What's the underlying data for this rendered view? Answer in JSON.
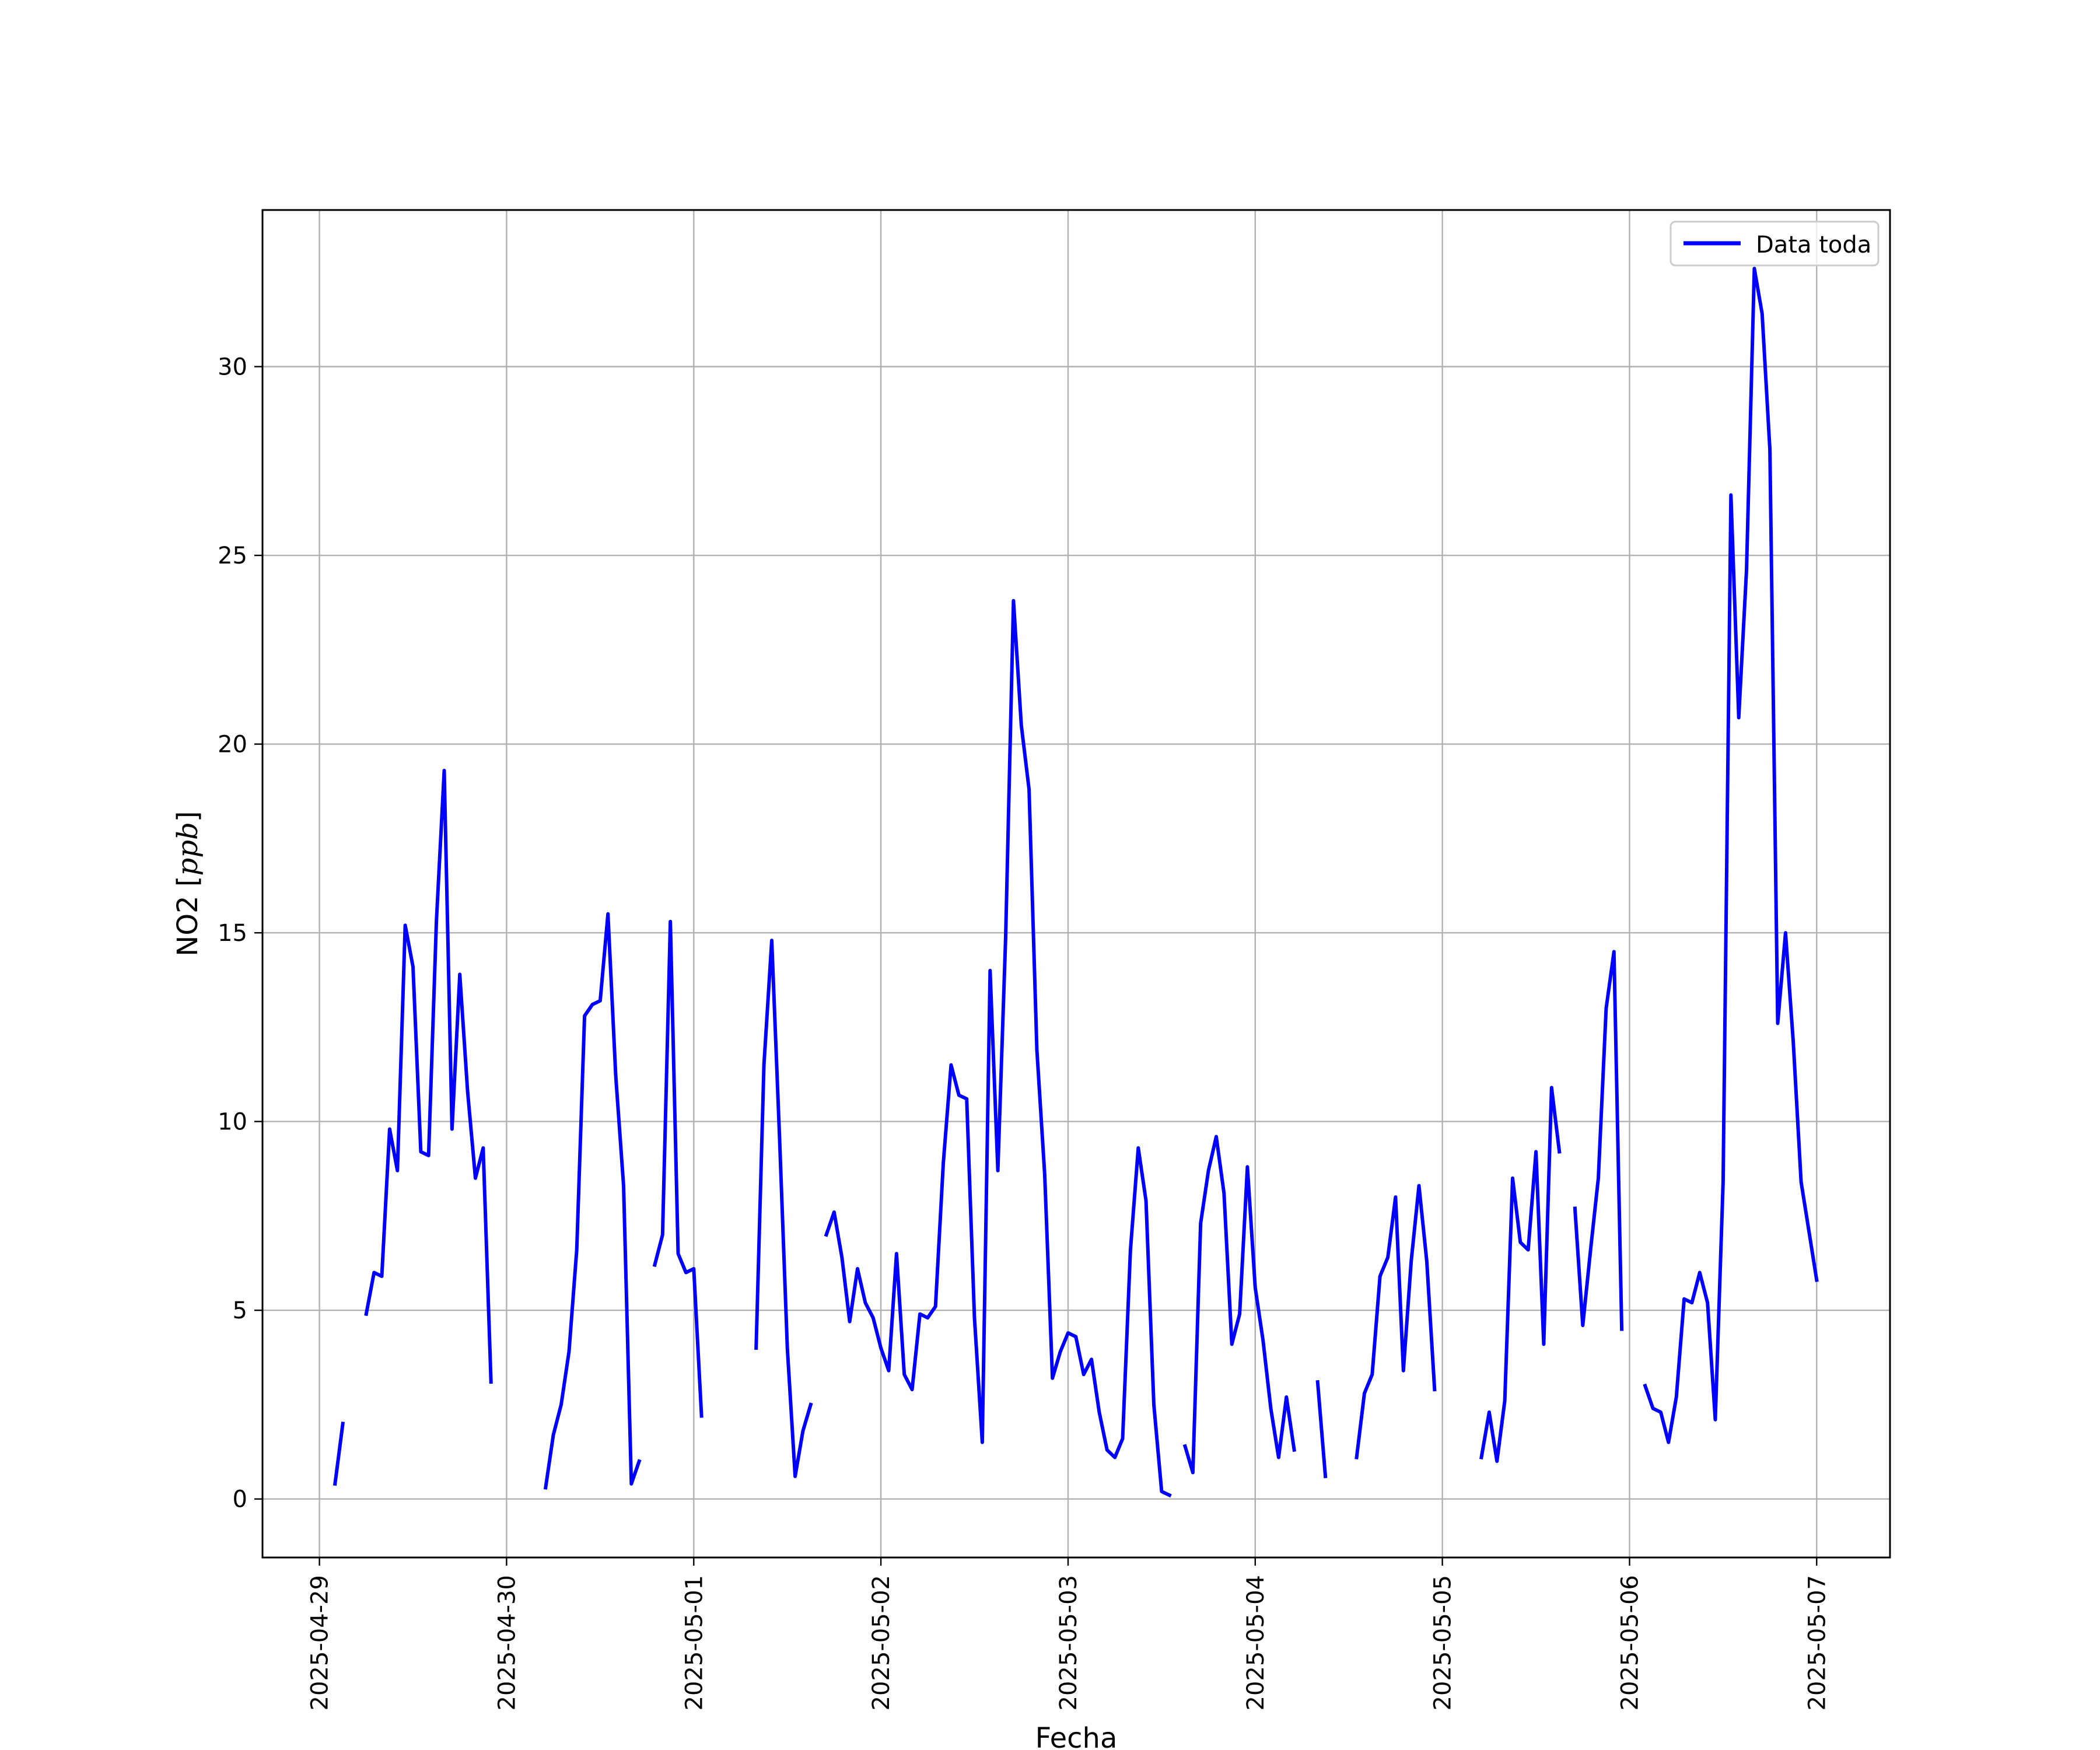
{
  "chart_data": {
    "type": "line",
    "title": "",
    "xlabel": "Fecha",
    "ylabel": "NO2 [ppb]",
    "ylabel_main": "NO2 [",
    "ylabel_unit": "ppb",
    "ylabel_close": "]",
    "xlim": [
      "2025-04-28T16:42",
      "2025-05-07T09:24"
    ],
    "ylim": [
      -1.55,
      34.15
    ],
    "x_ticks": [
      "2025-04-29",
      "2025-04-30",
      "2025-05-01",
      "2025-05-02",
      "2025-05-03",
      "2025-05-04",
      "2025-05-05",
      "2025-05-06",
      "2025-05-07"
    ],
    "y_ticks": [
      0,
      5,
      10,
      15,
      20,
      25,
      30
    ],
    "y_tick_labels": [
      "0",
      "5",
      "10",
      "15",
      "20",
      "25",
      "30"
    ],
    "grid": true,
    "legend": {
      "placement": "top-right",
      "entries": [
        "Data toda"
      ]
    },
    "series": [
      {
        "name": "Data toda",
        "color": "#0000ff",
        "segments": [
          [
            [
              "2025-04-29T02:00",
              0.4
            ],
            [
              "2025-04-29T03:00",
              2.0
            ]
          ],
          [
            [
              "2025-04-29T06:00",
              4.9
            ],
            [
              "2025-04-29T07:00",
              6.0
            ],
            [
              "2025-04-29T08:00",
              5.9
            ],
            [
              "2025-04-29T09:00",
              9.8
            ],
            [
              "2025-04-29T10:00",
              8.7
            ],
            [
              "2025-04-29T11:00",
              15.2
            ],
            [
              "2025-04-29T12:00",
              14.1
            ],
            [
              "2025-04-29T13:00",
              9.2
            ],
            [
              "2025-04-29T14:00",
              9.1
            ],
            [
              "2025-04-29T15:00",
              15.3
            ],
            [
              "2025-04-29T16:00",
              19.3
            ],
            [
              "2025-04-29T17:00",
              9.8
            ],
            [
              "2025-04-29T18:00",
              13.9
            ],
            [
              "2025-04-29T19:00",
              10.8
            ],
            [
              "2025-04-29T20:00",
              8.5
            ],
            [
              "2025-04-29T21:00",
              9.3
            ],
            [
              "2025-04-29T22:00",
              3.1
            ]
          ],
          [
            [
              "2025-04-30T05:00",
              0.3
            ],
            [
              "2025-04-30T06:00",
              1.7
            ],
            [
              "2025-04-30T07:00",
              2.5
            ],
            [
              "2025-04-30T08:00",
              3.9
            ],
            [
              "2025-04-30T09:00",
              6.6
            ],
            [
              "2025-04-30T10:00",
              12.8
            ],
            [
              "2025-04-30T11:00",
              13.1
            ],
            [
              "2025-04-30T12:00",
              13.2
            ],
            [
              "2025-04-30T13:00",
              15.5
            ],
            [
              "2025-04-30T14:00",
              11.2
            ],
            [
              "2025-04-30T15:00",
              8.3
            ],
            [
              "2025-04-30T16:00",
              0.4
            ],
            [
              "2025-04-30T17:00",
              1.0
            ]
          ],
          [
            [
              "2025-04-30T19:00",
              6.2
            ],
            [
              "2025-04-30T20:00",
              7.0
            ],
            [
              "2025-04-30T21:00",
              15.3
            ],
            [
              "2025-04-30T22:00",
              6.5
            ],
            [
              "2025-04-30T23:00",
              6.0
            ],
            [
              "2025-05-01T00:00",
              6.1
            ],
            [
              "2025-05-01T01:00",
              2.2
            ]
          ],
          [
            [
              "2025-05-01T08:00",
              4.0
            ],
            [
              "2025-05-01T09:00",
              11.5
            ],
            [
              "2025-05-01T10:00",
              14.8
            ],
            [
              "2025-05-01T11:00",
              9.6
            ],
            [
              "2025-05-01T12:00",
              4.0
            ],
            [
              "2025-05-01T13:00",
              0.6
            ],
            [
              "2025-05-01T14:00",
              1.8
            ],
            [
              "2025-05-01T15:00",
              2.5
            ]
          ],
          [
            [
              "2025-05-01T17:00",
              7.0
            ],
            [
              "2025-05-01T18:00",
              7.6
            ],
            [
              "2025-05-01T19:00",
              6.4
            ],
            [
              "2025-05-01T20:00",
              4.7
            ],
            [
              "2025-05-01T21:00",
              6.1
            ],
            [
              "2025-05-01T22:00",
              5.2
            ],
            [
              "2025-05-01T23:00",
              4.8
            ],
            [
              "2025-05-02T00:00",
              4.0
            ],
            [
              "2025-05-02T01:00",
              3.4
            ],
            [
              "2025-05-02T02:00",
              6.5
            ],
            [
              "2025-05-02T03:00",
              3.3
            ],
            [
              "2025-05-02T04:00",
              2.9
            ],
            [
              "2025-05-02T05:00",
              4.9
            ],
            [
              "2025-05-02T06:00",
              4.8
            ],
            [
              "2025-05-02T07:00",
              5.1
            ],
            [
              "2025-05-02T08:00",
              8.9
            ],
            [
              "2025-05-02T09:00",
              11.5
            ],
            [
              "2025-05-02T10:00",
              10.7
            ],
            [
              "2025-05-02T11:00",
              10.6
            ],
            [
              "2025-05-02T12:00",
              4.8
            ],
            [
              "2025-05-02T13:00",
              1.5
            ],
            [
              "2025-05-02T14:00",
              14.0
            ],
            [
              "2025-05-02T15:00",
              8.7
            ],
            [
              "2025-05-02T16:00",
              14.9
            ],
            [
              "2025-05-02T17:00",
              23.8
            ],
            [
              "2025-05-02T18:00",
              20.5
            ],
            [
              "2025-05-02T19:00",
              18.8
            ],
            [
              "2025-05-02T20:00",
              11.9
            ],
            [
              "2025-05-02T21:00",
              8.6
            ],
            [
              "2025-05-02T22:00",
              3.2
            ],
            [
              "2025-05-02T23:00",
              3.9
            ],
            [
              "2025-05-03T00:00",
              4.4
            ],
            [
              "2025-05-03T01:00",
              4.3
            ],
            [
              "2025-05-03T02:00",
              3.3
            ],
            [
              "2025-05-03T03:00",
              3.7
            ],
            [
              "2025-05-03T04:00",
              2.3
            ],
            [
              "2025-05-03T05:00",
              1.3
            ],
            [
              "2025-05-03T06:00",
              1.1
            ],
            [
              "2025-05-03T07:00",
              1.6
            ],
            [
              "2025-05-03T08:00",
              6.6
            ],
            [
              "2025-05-03T09:00",
              9.3
            ],
            [
              "2025-05-03T10:00",
              7.9
            ],
            [
              "2025-05-03T11:00",
              2.5
            ],
            [
              "2025-05-03T12:00",
              0.2
            ],
            [
              "2025-05-03T13:00",
              0.1
            ]
          ],
          [
            [
              "2025-05-03T15:00",
              1.4
            ],
            [
              "2025-05-03T16:00",
              0.7
            ],
            [
              "2025-05-03T17:00",
              7.3
            ],
            [
              "2025-05-03T18:00",
              8.7
            ],
            [
              "2025-05-03T19:00",
              9.6
            ],
            [
              "2025-05-03T20:00",
              8.1
            ],
            [
              "2025-05-03T21:00",
              4.1
            ],
            [
              "2025-05-03T22:00",
              4.9
            ],
            [
              "2025-05-03T23:00",
              8.8
            ],
            [
              "2025-05-04T00:00",
              5.6
            ],
            [
              "2025-05-04T01:00",
              4.2
            ],
            [
              "2025-05-04T02:00",
              2.4
            ],
            [
              "2025-05-04T03:00",
              1.1
            ],
            [
              "2025-05-04T04:00",
              2.7
            ],
            [
              "2025-05-04T05:00",
              1.3
            ]
          ],
          [
            [
              "2025-05-04T08:00",
              3.1
            ],
            [
              "2025-05-04T09:00",
              0.6
            ]
          ],
          [
            [
              "2025-05-04T13:00",
              1.1
            ],
            [
              "2025-05-04T14:00",
              2.8
            ],
            [
              "2025-05-04T15:00",
              3.3
            ],
            [
              "2025-05-04T16:00",
              5.9
            ],
            [
              "2025-05-04T17:00",
              6.4
            ],
            [
              "2025-05-04T18:00",
              8.0
            ],
            [
              "2025-05-04T19:00",
              3.4
            ],
            [
              "2025-05-04T20:00",
              6.3
            ],
            [
              "2025-05-04T21:00",
              8.3
            ],
            [
              "2025-05-04T22:00",
              6.3
            ],
            [
              "2025-05-04T23:00",
              2.9
            ]
          ],
          [
            [
              "2025-05-05T05:00",
              1.1
            ],
            [
              "2025-05-05T06:00",
              2.3
            ],
            [
              "2025-05-05T07:00",
              1.0
            ],
            [
              "2025-05-05T08:00",
              2.6
            ],
            [
              "2025-05-05T09:00",
              8.5
            ],
            [
              "2025-05-05T10:00",
              6.8
            ],
            [
              "2025-05-05T11:00",
              6.6
            ],
            [
              "2025-05-05T12:00",
              9.2
            ],
            [
              "2025-05-05T13:00",
              4.1
            ],
            [
              "2025-05-05T14:00",
              10.9
            ],
            [
              "2025-05-05T15:00",
              9.2
            ]
          ],
          [
            [
              "2025-05-05T17:00",
              7.7
            ],
            [
              "2025-05-05T18:00",
              4.6
            ],
            [
              "2025-05-05T19:00",
              6.6
            ],
            [
              "2025-05-05T20:00",
              8.5
            ],
            [
              "2025-05-05T21:00",
              13.0
            ],
            [
              "2025-05-05T22:00",
              14.5
            ],
            [
              "2025-05-05T23:00",
              4.5
            ]
          ],
          [
            [
              "2025-05-06T02:00",
              3.0
            ],
            [
              "2025-05-06T03:00",
              2.4
            ],
            [
              "2025-05-06T04:00",
              2.3
            ],
            [
              "2025-05-06T05:00",
              1.5
            ],
            [
              "2025-05-06T06:00",
              2.7
            ],
            [
              "2025-05-06T07:00",
              5.3
            ],
            [
              "2025-05-06T08:00",
              5.2
            ],
            [
              "2025-05-06T09:00",
              6.0
            ],
            [
              "2025-05-06T10:00",
              5.2
            ],
            [
              "2025-05-06T11:00",
              2.1
            ],
            [
              "2025-05-06T12:00",
              8.4
            ],
            [
              "2025-05-06T13:00",
              26.6
            ],
            [
              "2025-05-06T14:00",
              20.7
            ],
            [
              "2025-05-06T15:00",
              24.6
            ],
            [
              "2025-05-06T16:00",
              32.6
            ],
            [
              "2025-05-06T17:00",
              31.4
            ],
            [
              "2025-05-06T18:00",
              27.8
            ],
            [
              "2025-05-06T19:00",
              12.6
            ],
            [
              "2025-05-06T20:00",
              15.0
            ],
            [
              "2025-05-06T21:00",
              12.1
            ],
            [
              "2025-05-06T22:00",
              8.4
            ],
            [
              "2025-05-06T23:00",
              7.1
            ],
            [
              "2025-05-07T00:00",
              5.8
            ]
          ]
        ]
      }
    ]
  }
}
